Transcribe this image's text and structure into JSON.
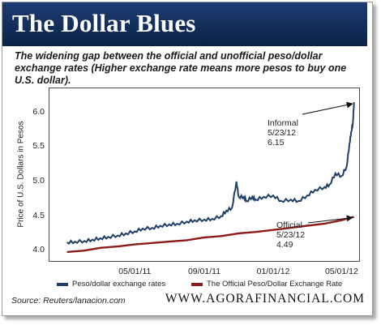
{
  "banner": {
    "title": "The Dollar Blues"
  },
  "subtitle": "The widening gap between the official and unofficial peso/dollar exchange rates (Higher exchange rate means more pesos to buy one U.S. dollar).",
  "source": "Source:  Reuters/lanacion.com",
  "website": "WWW.AGORAFINANCIAL.COM",
  "colors": {
    "banner": "#0f2a55",
    "informal": "#1f3f66",
    "official": "#8b1a1a"
  },
  "chart_data": {
    "type": "line",
    "ylabel": "Price of U.S. Dollars in Pesos",
    "ylim": [
      3.85,
      6.35
    ],
    "yticks": [
      4.0,
      4.5,
      5.0,
      5.5,
      6.0
    ],
    "ytick_labels": [
      "4.0",
      "4.5",
      "5.0",
      "5.5",
      "6.0"
    ],
    "xlim": [
      "2010-12-01",
      "2012-06-01"
    ],
    "xticks": [
      "2011-05-01",
      "2011-09-01",
      "2012-01-01",
      "2012-05-01"
    ],
    "xtick_labels": [
      "05/01/11",
      "09/01/11",
      "01/01/12",
      "05/01/12"
    ],
    "legend_placement": "bottom",
    "series": [
      {
        "name": "Peso/dollar exchange rates",
        "color": "#1f3f66",
        "x": [
          "2011-01-01",
          "2011-01-15",
          "2011-02-01",
          "2011-02-15",
          "2011-03-01",
          "2011-03-15",
          "2011-04-01",
          "2011-04-15",
          "2011-05-01",
          "2011-05-15",
          "2011-06-01",
          "2011-06-15",
          "2011-07-01",
          "2011-07-15",
          "2011-08-01",
          "2011-08-15",
          "2011-09-01",
          "2011-09-15",
          "2011-10-01",
          "2011-10-10",
          "2011-10-20",
          "2011-10-28",
          "2011-11-01",
          "2011-11-10",
          "2011-11-15",
          "2011-11-25",
          "2011-12-01",
          "2011-12-15",
          "2012-01-01",
          "2012-01-15",
          "2012-02-01",
          "2012-02-15",
          "2012-03-01",
          "2012-03-15",
          "2012-04-01",
          "2012-04-10",
          "2012-04-20",
          "2012-05-01",
          "2012-05-10",
          "2012-05-15",
          "2012-05-18",
          "2012-05-21",
          "2012-05-23"
        ],
        "values": [
          4.12,
          4.13,
          4.14,
          4.16,
          4.18,
          4.2,
          4.22,
          4.25,
          4.28,
          4.32,
          4.33,
          4.36,
          4.38,
          4.39,
          4.42,
          4.44,
          4.45,
          4.46,
          4.5,
          4.58,
          4.62,
          5.0,
          4.78,
          4.78,
          4.72,
          4.78,
          4.74,
          4.78,
          4.8,
          4.72,
          4.74,
          4.72,
          4.8,
          4.88,
          4.92,
          4.96,
          5.12,
          5.08,
          5.22,
          5.55,
          5.72,
          5.85,
          6.15
        ]
      },
      {
        "name": "The Official Peso/Dollar Exchange Rate",
        "color": "#8b1a1a",
        "x": [
          "2011-01-01",
          "2011-02-01",
          "2011-03-01",
          "2011-04-01",
          "2011-05-01",
          "2011-06-01",
          "2011-07-01",
          "2011-08-01",
          "2011-09-01",
          "2011-10-01",
          "2011-11-01",
          "2011-12-01",
          "2012-01-01",
          "2012-02-01",
          "2012-03-01",
          "2012-04-01",
          "2012-05-01",
          "2012-05-23"
        ],
        "values": [
          3.98,
          4.0,
          4.04,
          4.06,
          4.09,
          4.11,
          4.13,
          4.15,
          4.19,
          4.21,
          4.25,
          4.27,
          4.3,
          4.33,
          4.36,
          4.39,
          4.44,
          4.49
        ]
      }
    ],
    "annotations": [
      {
        "lines": [
          "Informal",
          "5/23/12",
          "6.15"
        ],
        "x": "2012-05-23",
        "y": 6.15
      },
      {
        "lines": [
          "Official",
          "5/23/12",
          "4.49"
        ],
        "x": "2012-05-23",
        "y": 4.49
      }
    ]
  }
}
